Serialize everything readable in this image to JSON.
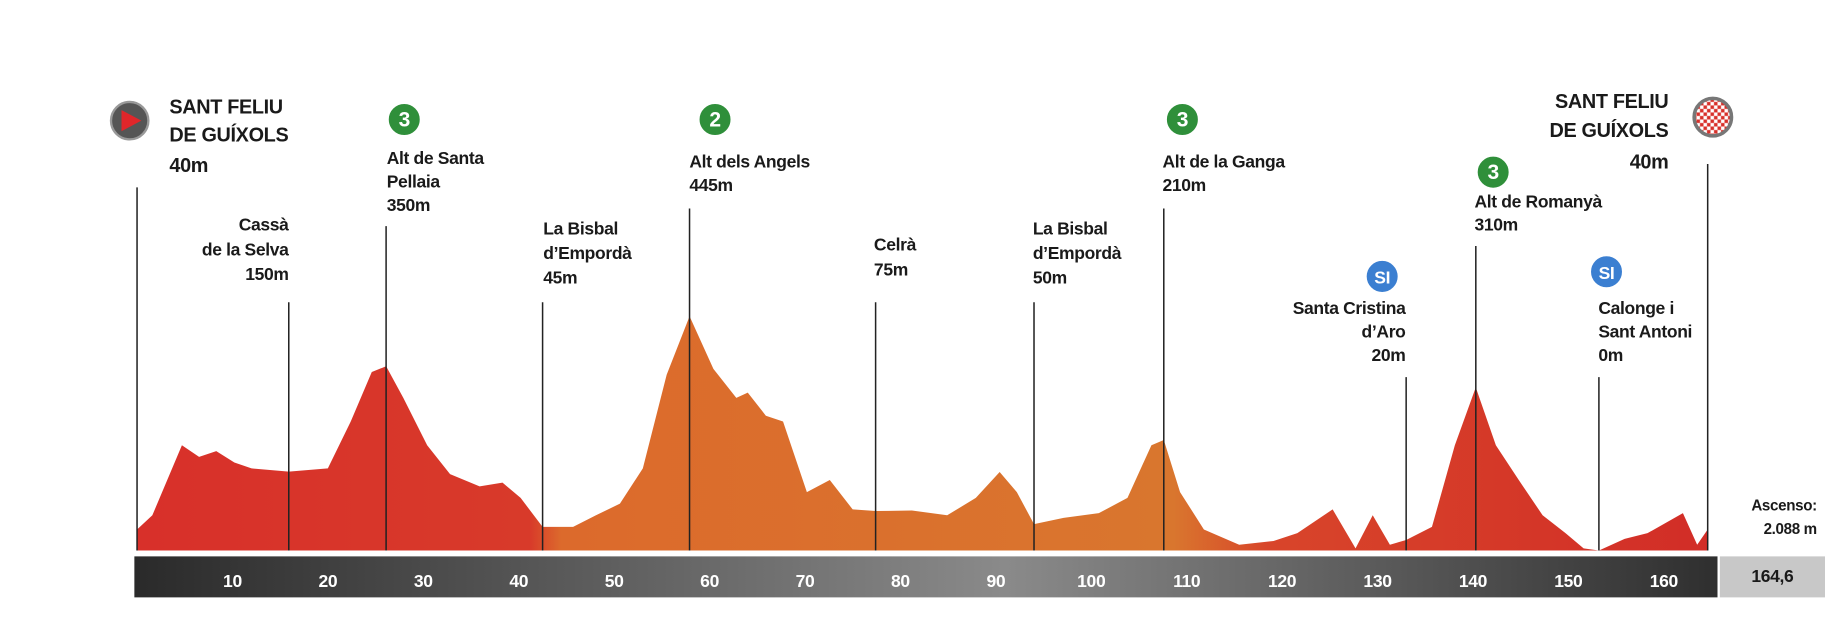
{
  "chart_data": {
    "type": "area",
    "x": [
      0,
      1.6,
      4.7,
      6.5,
      8.3,
      10.2,
      12,
      15.9,
      20,
      22.4,
      24.6,
      26.1,
      27.9,
      30.4,
      32.8,
      35.9,
      38.3,
      40.2,
      42.5,
      45.7,
      48.1,
      50.6,
      53,
      55.5,
      57.9,
      60.4,
      62.8,
      64,
      65.9,
      67.7,
      70.2,
      72.6,
      75,
      77.4,
      81.2,
      84.9,
      87.9,
      90.4,
      92.2,
      94,
      97.1,
      100.8,
      103.8,
      106.3,
      107.6,
      109.3,
      111.8,
      115.5,
      119.1,
      121.6,
      125.3,
      127.7,
      129.5,
      131.3,
      133,
      135.7,
      138.1,
      140.3,
      142.4,
      144.8,
      147.3,
      149.7,
      151.6,
      153.2,
      155.9,
      158.3,
      162,
      163.5,
      164.6
    ],
    "values": [
      40,
      67,
      200,
      178,
      189,
      167,
      156,
      150,
      156,
      245,
      339,
      350,
      290,
      200,
      145,
      122,
      129,
      100,
      45,
      45,
      67,
      89,
      156,
      334,
      445,
      345,
      290,
      300,
      256,
      245,
      111,
      134,
      78,
      75,
      76,
      67,
      100,
      149,
      111,
      50,
      62,
      71,
      100,
      200,
      210,
      111,
      40,
      11,
      18,
      33,
      78,
      4,
      67,
      11,
      20,
      45,
      200,
      310,
      200,
      134,
      67,
      33,
      4,
      0,
      22,
      33,
      71,
      11,
      40
    ],
    "xlim": [
      0,
      164.6
    ],
    "ylim": [
      0,
      445
    ],
    "xticks": [
      10,
      20,
      30,
      40,
      50,
      60,
      70,
      80,
      90,
      100,
      110,
      120,
      130,
      140,
      150,
      160
    ],
    "locations": [
      {
        "name": [
          "SANT FELIU",
          "DE GUÍXOLS"
        ],
        "elevation": "40m",
        "km": 0
      },
      {
        "name": [
          "Cassà",
          "de la Selva"
        ],
        "elevation": "150m",
        "km": 15.9
      },
      {
        "name": [
          "Alt de Santa",
          "Pellaia"
        ],
        "elevation": "350m",
        "km": 26.1,
        "badge": {
          "label": "3",
          "color": "#2f8f3a"
        }
      },
      {
        "name": [
          "La Bisbal",
          "d’Empordà"
        ],
        "elevation": "45m",
        "km": 42.5
      },
      {
        "name": [
          "Alt dels Angels"
        ],
        "elevation": "445m",
        "km": 57.9,
        "badge": {
          "label": "2",
          "color": "#2f8f3a"
        }
      },
      {
        "name": [
          "Celrà"
        ],
        "elevation": "75m",
        "km": 77.4
      },
      {
        "name": [
          "La Bisbal",
          "d’Empordà"
        ],
        "elevation": "50m",
        "km": 94
      },
      {
        "name": [
          "Alt de la Ganga"
        ],
        "elevation": "210m",
        "km": 107.6,
        "badge": {
          "label": "3",
          "color": "#2f8f3a"
        }
      },
      {
        "name": [
          "Santa Cristina",
          "d’Aro"
        ],
        "elevation": "20m",
        "km": 133,
        "badge": {
          "label": "SI",
          "color": "#3b7fd1"
        }
      },
      {
        "name": [
          "Alt de Romanyà"
        ],
        "elevation": "310m",
        "km": 140.3,
        "badge": {
          "label": "3",
          "color": "#2f8f3a"
        }
      },
      {
        "name": [
          "Calonge i",
          "Sant Antoni"
        ],
        "elevation": "0m",
        "km": 153.2,
        "badge": {
          "label": "SI",
          "color": "#3b7fd1"
        }
      },
      {
        "name": [
          "SANT FELIU",
          "DE GUÍXOLS"
        ],
        "elevation": "40m",
        "km": 164.6
      }
    ],
    "ascent_label": "Ascenso:",
    "ascent": "2.088 m",
    "distance": {
      "value": 164.6,
      "label": "164,6"
    }
  }
}
